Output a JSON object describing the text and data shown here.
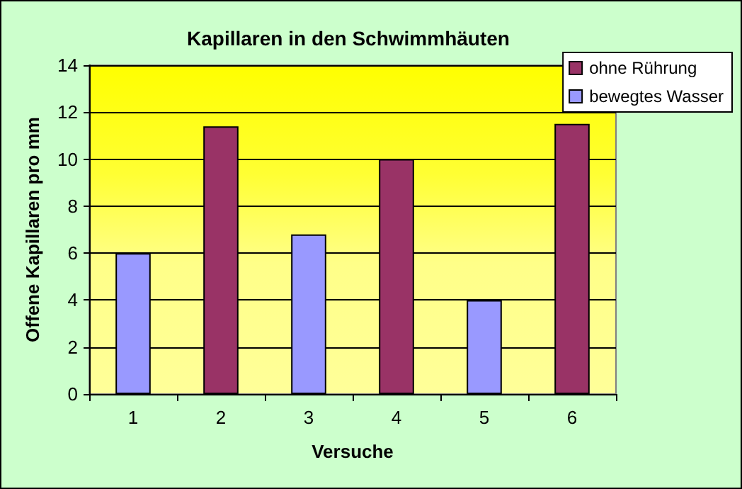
{
  "chart_data": {
    "type": "bar",
    "title": "Kapillaren in den Schwimmhäuten",
    "xlabel": "Versuche",
    "ylabel": "Offene Kapillaren pro mm",
    "categories": [
      "1",
      "2",
      "3",
      "4",
      "5",
      "6"
    ],
    "series": [
      {
        "name": "ohne Rührung",
        "color": "#993366",
        "values": [
          null,
          11.4,
          null,
          10,
          null,
          11.5
        ]
      },
      {
        "name": "bewegtes Wasser",
        "color": "#9999ff",
        "values": [
          6,
          null,
          6.8,
          null,
          4,
          null
        ]
      }
    ],
    "ylim": [
      0,
      14
    ],
    "yticks": [
      0,
      2,
      4,
      6,
      8,
      10,
      12,
      14
    ],
    "grid": "y",
    "legend": "top right"
  }
}
